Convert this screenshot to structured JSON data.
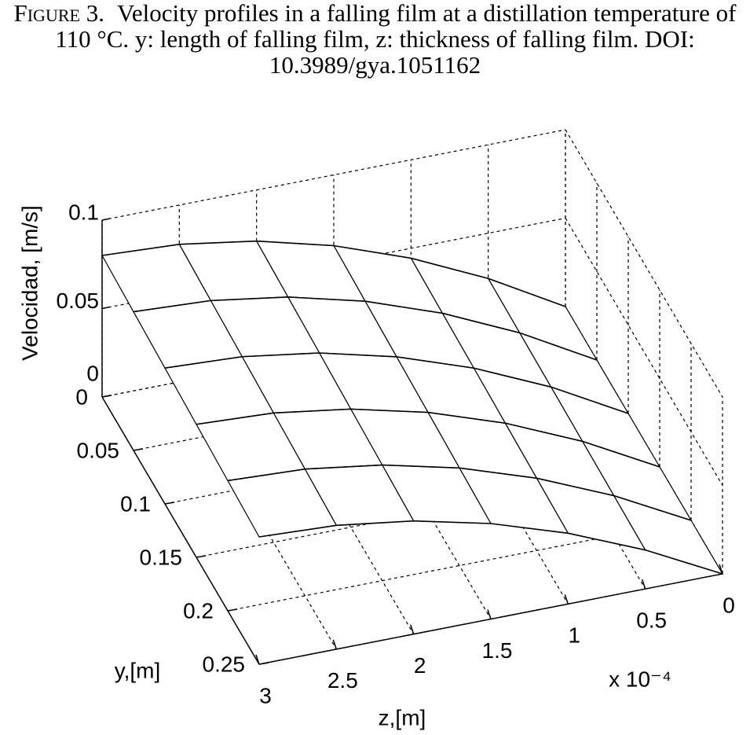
{
  "chart_data": {
    "type": "surface",
    "caption_label": "Figure 3.",
    "caption": "Velocity profiles in a falling film at a distillation temperature of 110 °C. y: length of falling film, z: thickness of falling film. DOI: 10.3989/gya.1051162",
    "zlabel": "z,[m]",
    "ylabel": "y,[m]",
    "vlabel": "Velocidad, [m/s]",
    "z_multiplier": "x 10⁻⁴",
    "z": [
      0,
      0.5,
      1,
      1.5,
      2,
      2.5,
      3
    ],
    "zlim": [
      0,
      3
    ],
    "zticks": [
      0,
      0.5,
      1,
      1.5,
      2,
      2.5,
      3
    ],
    "y": [
      0,
      0.05,
      0.1,
      0.15,
      0.2,
      0.25
    ],
    "ylim": [
      0,
      0.25
    ],
    "yticks": [
      0,
      0.05,
      0.1,
      0.15,
      0.2,
      0.25
    ],
    "vlim": [
      0,
      0.1
    ],
    "vticks": [
      0,
      0.05,
      0.1
    ],
    "values": [
      [
        0,
        0.0244,
        0.0444,
        0.06,
        0.0711,
        0.0778,
        0.08
      ],
      [
        0,
        0.0239,
        0.0435,
        0.0588,
        0.0697,
        0.0762,
        0.0784
      ],
      [
        0,
        0.0235,
        0.0427,
        0.0576,
        0.0683,
        0.0747,
        0.0768
      ],
      [
        0,
        0.023,
        0.0418,
        0.0564,
        0.0668,
        0.0731,
        0.0752
      ],
      [
        0,
        0.0225,
        0.0409,
        0.0552,
        0.0654,
        0.0716,
        0.0736
      ],
      [
        0,
        0.022,
        0.04,
        0.054,
        0.064,
        0.07,
        0.072
      ]
    ],
    "color": "#000000",
    "grid": true
  }
}
